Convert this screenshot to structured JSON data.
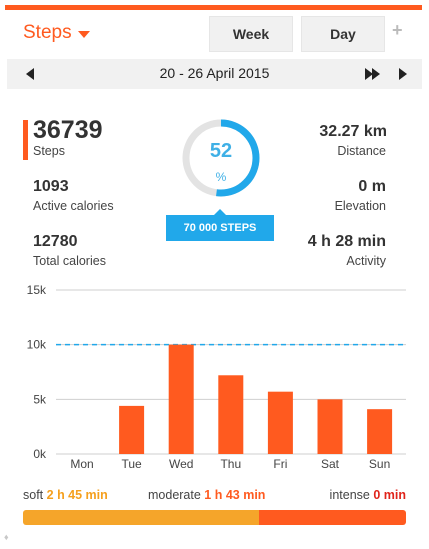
{
  "header": {
    "title": "Steps",
    "tabs": [
      "Week",
      "Day"
    ],
    "add_label": "+"
  },
  "date_range": "20 - 26 April 2015",
  "stats": {
    "steps": {
      "value": "36739",
      "label": "Steps"
    },
    "active_calories": {
      "value": "1093",
      "label": "Active calories"
    },
    "total_calories": {
      "value": "12780",
      "label": "Total calories"
    },
    "distance": {
      "value": "32.27 km",
      "label": "Distance"
    },
    "elevation": {
      "value": "0 m",
      "label": "Elevation"
    },
    "activity": {
      "value": "4 h 28 min",
      "label": "Activity"
    }
  },
  "goal": {
    "percent_text": "52",
    "percent_value": 52,
    "unit": "%",
    "label": "70 000 STEPS"
  },
  "colors": {
    "accent": "#ff5a1f",
    "goal_blue": "#21a8ea",
    "soft": "#f5a52a",
    "moderate": "#ff5a1f",
    "intense": "#e0241b"
  },
  "chart_data": {
    "type": "bar",
    "categories": [
      "Mon",
      "Tue",
      "Wed",
      "Thu",
      "Fri",
      "Sat",
      "Sun"
    ],
    "values": [
      0,
      4400,
      10000,
      7200,
      5700,
      5000,
      4100
    ],
    "yticks": [
      "0k",
      "5k",
      "10k",
      "15k"
    ],
    "ylim": [
      0,
      15000
    ],
    "goal_line": 10000,
    "grid": true
  },
  "intensity": {
    "soft": {
      "label": "soft",
      "value": "2 h 45 min",
      "minutes": 165
    },
    "moderate": {
      "label": "moderate",
      "value": "1 h 43 min",
      "minutes": 103
    },
    "intense": {
      "label": "intense",
      "value": "0 min",
      "minutes": 0
    }
  }
}
